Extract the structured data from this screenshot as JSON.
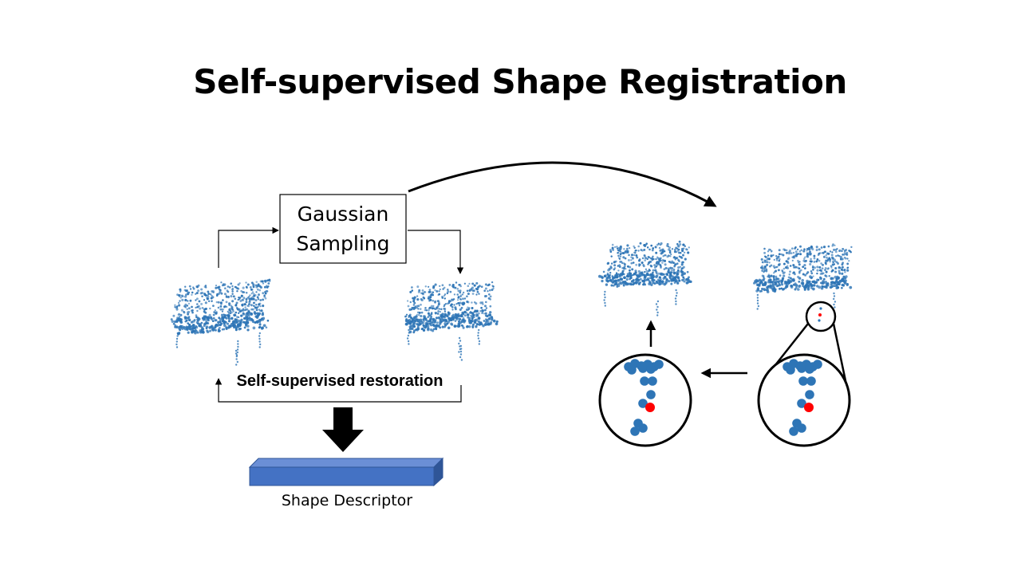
{
  "title": "Self-supervised Shape Registration",
  "gaussian_box": {
    "line1": "Gaussian",
    "line2": "Sampling"
  },
  "restoration_label": "Self-supervised restoration",
  "descriptor_label": "Shape Descriptor",
  "colors": {
    "point": "#2e75b6",
    "highlight": "#ff0000",
    "descriptor_front": "#4472c4",
    "descriptor_top": "#6b8fd6",
    "descriptor_side": "#2f5597",
    "line": "#000000"
  },
  "icons": {
    "point_clouds": [
      "chair-point-cloud-original",
      "chair-point-cloud-sampled",
      "chair-point-cloud-target",
      "chair-point-cloud-source"
    ],
    "zoom_lenses": [
      "zoom-lens-source",
      "zoom-lens-target"
    ]
  }
}
